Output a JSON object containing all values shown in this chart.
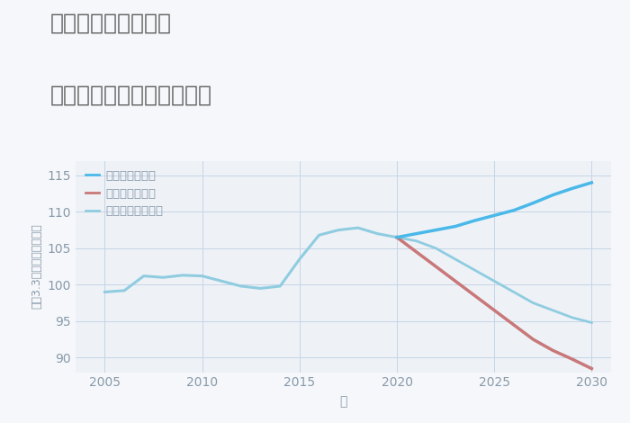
{
  "title_line1": "岐阜県本巣市温井の",
  "title_line2": "中古マンションの価格推移",
  "xlabel": "年",
  "ylabel": "坪（3.3㎡）単価（万円）",
  "xlim": [
    2003.5,
    2031
  ],
  "ylim": [
    88,
    117
  ],
  "yticks": [
    90,
    95,
    100,
    105,
    110,
    115
  ],
  "xticks": [
    2005,
    2010,
    2015,
    2020,
    2025,
    2030
  ],
  "background_color": "#f5f7fa",
  "plot_bg_color": "#eef2f7",
  "grid_color": "#c5d5e5",
  "historical": {
    "years": [
      2005,
      2006,
      2007,
      2008,
      2009,
      2010,
      2011,
      2012,
      2013,
      2014,
      2015,
      2016,
      2017,
      2018,
      2019,
      2020
    ],
    "values": [
      99.0,
      99.2,
      101.2,
      101.0,
      101.3,
      101.2,
      100.5,
      99.8,
      99.5,
      99.8,
      103.5,
      106.8,
      107.5,
      107.8,
      107.0,
      106.5
    ]
  },
  "good_scenario": {
    "years": [
      2020,
      2021,
      2022,
      2023,
      2024,
      2025,
      2026,
      2027,
      2028,
      2029,
      2030
    ],
    "values": [
      106.5,
      107.0,
      107.5,
      108.0,
      108.8,
      109.5,
      110.2,
      111.2,
      112.3,
      113.2,
      114.0
    ]
  },
  "bad_scenario": {
    "years": [
      2020,
      2021,
      2022,
      2023,
      2024,
      2025,
      2026,
      2027,
      2028,
      2029,
      2030
    ],
    "values": [
      106.5,
      104.5,
      102.5,
      100.5,
      98.5,
      96.5,
      94.5,
      92.5,
      91.0,
      89.8,
      88.5
    ]
  },
  "normal_scenario": {
    "years": [
      2020,
      2021,
      2022,
      2023,
      2024,
      2025,
      2026,
      2027,
      2028,
      2029,
      2030
    ],
    "values": [
      106.5,
      106.0,
      105.0,
      103.5,
      102.0,
      100.5,
      99.0,
      97.5,
      96.5,
      95.5,
      94.8
    ]
  },
  "color_good": "#4ab8e8",
  "color_bad": "#c87878",
  "color_historical": "#90cce0",
  "color_normal": "#90cce0",
  "legend_labels": [
    "グッドシナリオ",
    "バッドシナリオ",
    "ノーマルシナリオ"
  ],
  "title_color": "#606060",
  "axis_color": "#8899aa",
  "title_fontsize": 18,
  "tick_fontsize": 10,
  "label_fontsize": 10
}
